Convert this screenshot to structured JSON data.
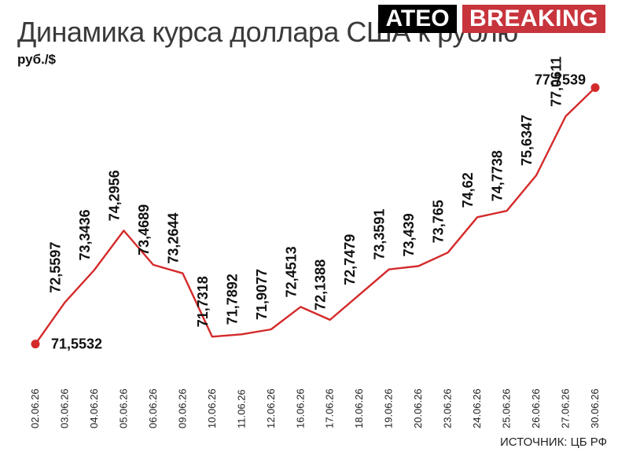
{
  "header": {
    "title": "Динамика курса доллара США к рублю",
    "unit": "руб./$",
    "badge_primary": "ATEO",
    "badge_secondary": "BREAKING",
    "source": "ИСТОЧНИК: ЦБ РФ"
  },
  "colors": {
    "line": "#d42a2a",
    "badge_dark": "#000000",
    "badge_red": "#c8343c"
  },
  "chart_data": {
    "type": "line",
    "title": "Динамика курса доллара США к рублю",
    "ylabel": "руб./$",
    "xlabel": "",
    "ylim": [
      71.3,
      78.2
    ],
    "grid": false,
    "categories": [
      "02.06.26",
      "03.06.26",
      "04.06.26",
      "05.06.26",
      "06.06.26",
      "09.06.26",
      "10.06.26",
      "11.06.26",
      "12.06.26",
      "16.06.26",
      "17.06.26",
      "18.06.26",
      "19.06.26",
      "20.06.26",
      "23.06.26",
      "24.06.26",
      "25.06.26",
      "26.06.26",
      "27.06.26",
      "30.06.26"
    ],
    "values": [
      71.5532,
      72.5597,
      73.3436,
      74.2956,
      73.4689,
      73.2644,
      71.7318,
      71.7892,
      71.9077,
      72.4513,
      72.1388,
      72.7479,
      73.3591,
      73.439,
      73.765,
      74.62,
      74.7738,
      75.6347,
      77.0611,
      77.7539
    ],
    "labels": [
      "71,5532",
      "72,5597",
      "73,3436",
      "74,2956",
      "73,4689",
      "73,2644",
      "71,7318",
      "71,7892",
      "71,9077",
      "72,4513",
      "72,1388",
      "72,7479",
      "73,3591",
      "73,439",
      "73,765",
      "74,62",
      "74,7738",
      "75,6347",
      "77,0611",
      "77,7539"
    ]
  }
}
